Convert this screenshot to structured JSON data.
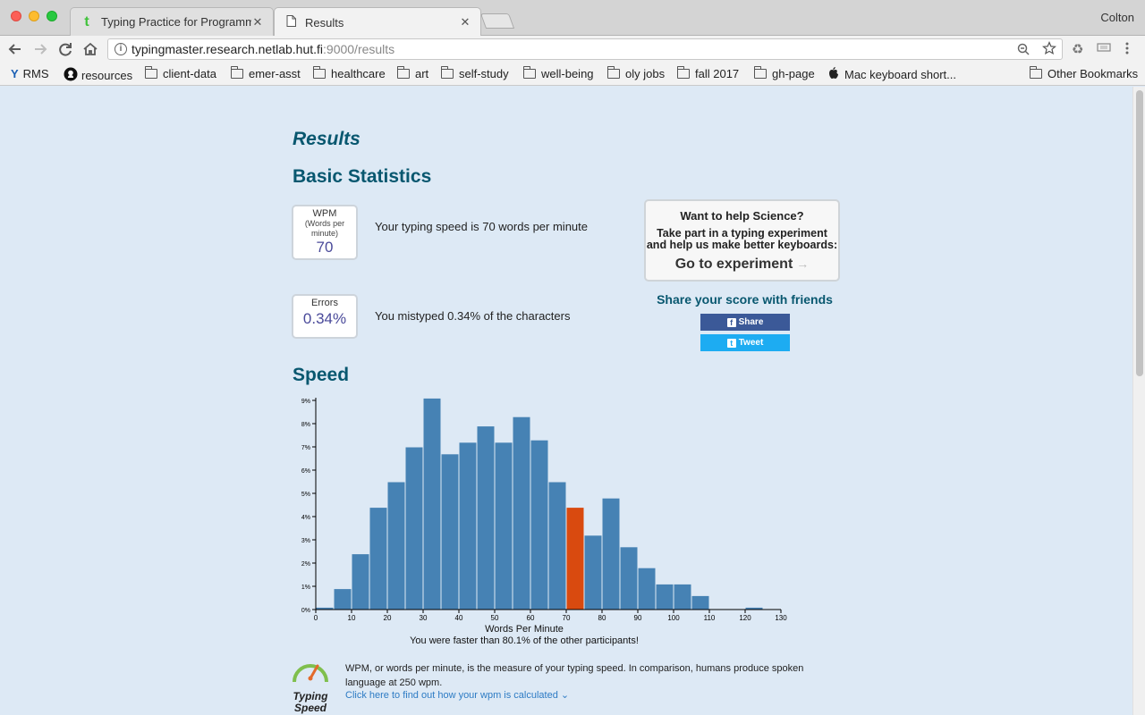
{
  "browser": {
    "tabs": [
      {
        "label": "Typing Practice for Programm",
        "icon": "typing-t-favicon",
        "icon_glyph": "t",
        "icon_color": "#3fc23a"
      },
      {
        "label": "Results",
        "icon": "page-icon",
        "icon_glyph": "🗋"
      }
    ],
    "close_glyph": "✕",
    "profile_name": "Colton",
    "url_host": "typingmaster.research.netlab.hut.fi",
    "url_path": ":9000/results",
    "bookmarks": [
      {
        "label": "RMS",
        "icon": "rms-icon"
      },
      {
        "label": "resources",
        "icon": "github-icon"
      },
      {
        "label": "client-data",
        "icon": "folder-icon"
      },
      {
        "label": "emer-asst",
        "icon": "folder-icon"
      },
      {
        "label": "healthcare",
        "icon": "folder-icon"
      },
      {
        "label": "art",
        "icon": "folder-icon"
      },
      {
        "label": "self-study",
        "icon": "folder-icon"
      },
      {
        "label": "well-being",
        "icon": "folder-icon"
      },
      {
        "label": "oly jobs",
        "icon": "folder-icon"
      },
      {
        "label": "fall 2017",
        "icon": "folder-icon"
      },
      {
        "label": "gh-page",
        "icon": "folder-icon"
      },
      {
        "label": "Mac keyboard short...",
        "icon": "apple-icon"
      },
      {
        "label": "Other Bookmarks",
        "icon": "folder-icon"
      }
    ]
  },
  "page": {
    "title": "Results",
    "basic_heading": "Basic Statistics",
    "wpm": {
      "label": "WPM",
      "sublabel": "(Words per minute)",
      "value": "70",
      "description": "Your typing speed is 70 words per minute"
    },
    "errors": {
      "label": "Errors",
      "value": "0.34%",
      "description": "You mistyped 0.34% of the characters"
    },
    "science": {
      "question": "Want to help Science?",
      "description": "Take part in a typing experiment and help us make better keyboards:",
      "cta": "Go to experiment"
    },
    "share": {
      "title": "Share your score with friends",
      "facebook": "Share",
      "twitter": "Tweet"
    },
    "speed_heading": "Speed",
    "faster_text": "You were faster than 80.1% of the other participants!",
    "wpm_info": "WPM, or words per minute, is the measure of your typing speed. In comparison, humans produce spoken language at 250 wpm.",
    "wpm_link": "Click here to find out how your wpm is calculated",
    "gauge_label": "Typing Speed"
  },
  "colors": {
    "heading": "#08576f",
    "bar": "#4682b4",
    "highlight": "#d94a0f",
    "background": "#dde9f5"
  },
  "chart_data": {
    "type": "bar",
    "title": "",
    "xlabel": "Words Per Minute",
    "ylabel": "",
    "bin_width": 5,
    "bins_start": [
      0,
      5,
      10,
      15,
      20,
      25,
      30,
      35,
      40,
      45,
      50,
      55,
      60,
      65,
      70,
      75,
      80,
      85,
      90,
      95,
      100,
      105,
      110,
      115,
      120,
      125
    ],
    "values": [
      0.1,
      0.9,
      2.4,
      4.4,
      5.5,
      7.0,
      9.1,
      6.7,
      7.2,
      7.9,
      7.2,
      8.3,
      7.3,
      5.5,
      4.4,
      3.2,
      4.8,
      2.7,
      1.8,
      1.1,
      1.1,
      0.6,
      0,
      0,
      0.1,
      0
    ],
    "highlight_bin": 70,
    "xlim": [
      0,
      130
    ],
    "ylim": [
      0,
      9
    ],
    "x_ticks": [
      0,
      10,
      20,
      30,
      40,
      50,
      60,
      70,
      80,
      90,
      100,
      110,
      120,
      130
    ],
    "y_ticks": [
      "0%",
      "1%",
      "2%",
      "3%",
      "4%",
      "5%",
      "6%",
      "7%",
      "8%",
      "9%"
    ],
    "grid": false
  }
}
